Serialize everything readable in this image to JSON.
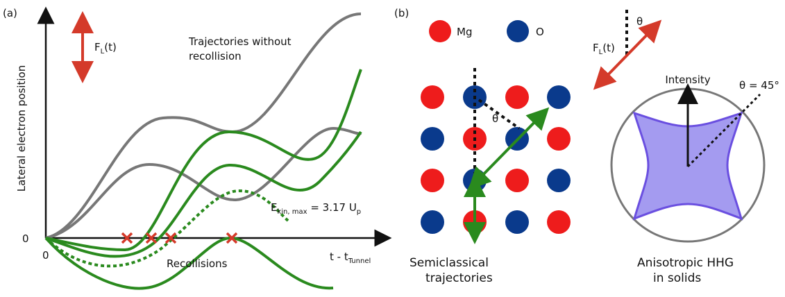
{
  "panel_a": {
    "label": "(a)",
    "force": {
      "main": "F",
      "sub": "L",
      "rest": "(t)"
    },
    "trajectories_label": "Trajectories without recollision",
    "y_axis_label": "Lateral electron position",
    "y_zero": "0",
    "x_zero": "0",
    "energy": {
      "main": "E",
      "sub": "kin, max",
      "rest": " = 3.17 U",
      "sub2": "p"
    },
    "recollisions_label": "Recollisions",
    "x_axis_label": {
      "main": "t - t",
      "sub": "Tunnel"
    }
  },
  "panel_b": {
    "label": "(b)",
    "legend": {
      "mg": "Mg",
      "o": "O"
    },
    "lattice_theta": "θ",
    "field_theta": "θ",
    "force": {
      "main": "F",
      "sub": "L",
      "rest": "(t)"
    },
    "intensity_label": "Intensity",
    "angle_label": "θ = 45°",
    "caption_left": [
      "Semiclassical",
      "trajectories"
    ],
    "caption_right": [
      "Anisotropic HHG",
      "in solids"
    ]
  }
}
